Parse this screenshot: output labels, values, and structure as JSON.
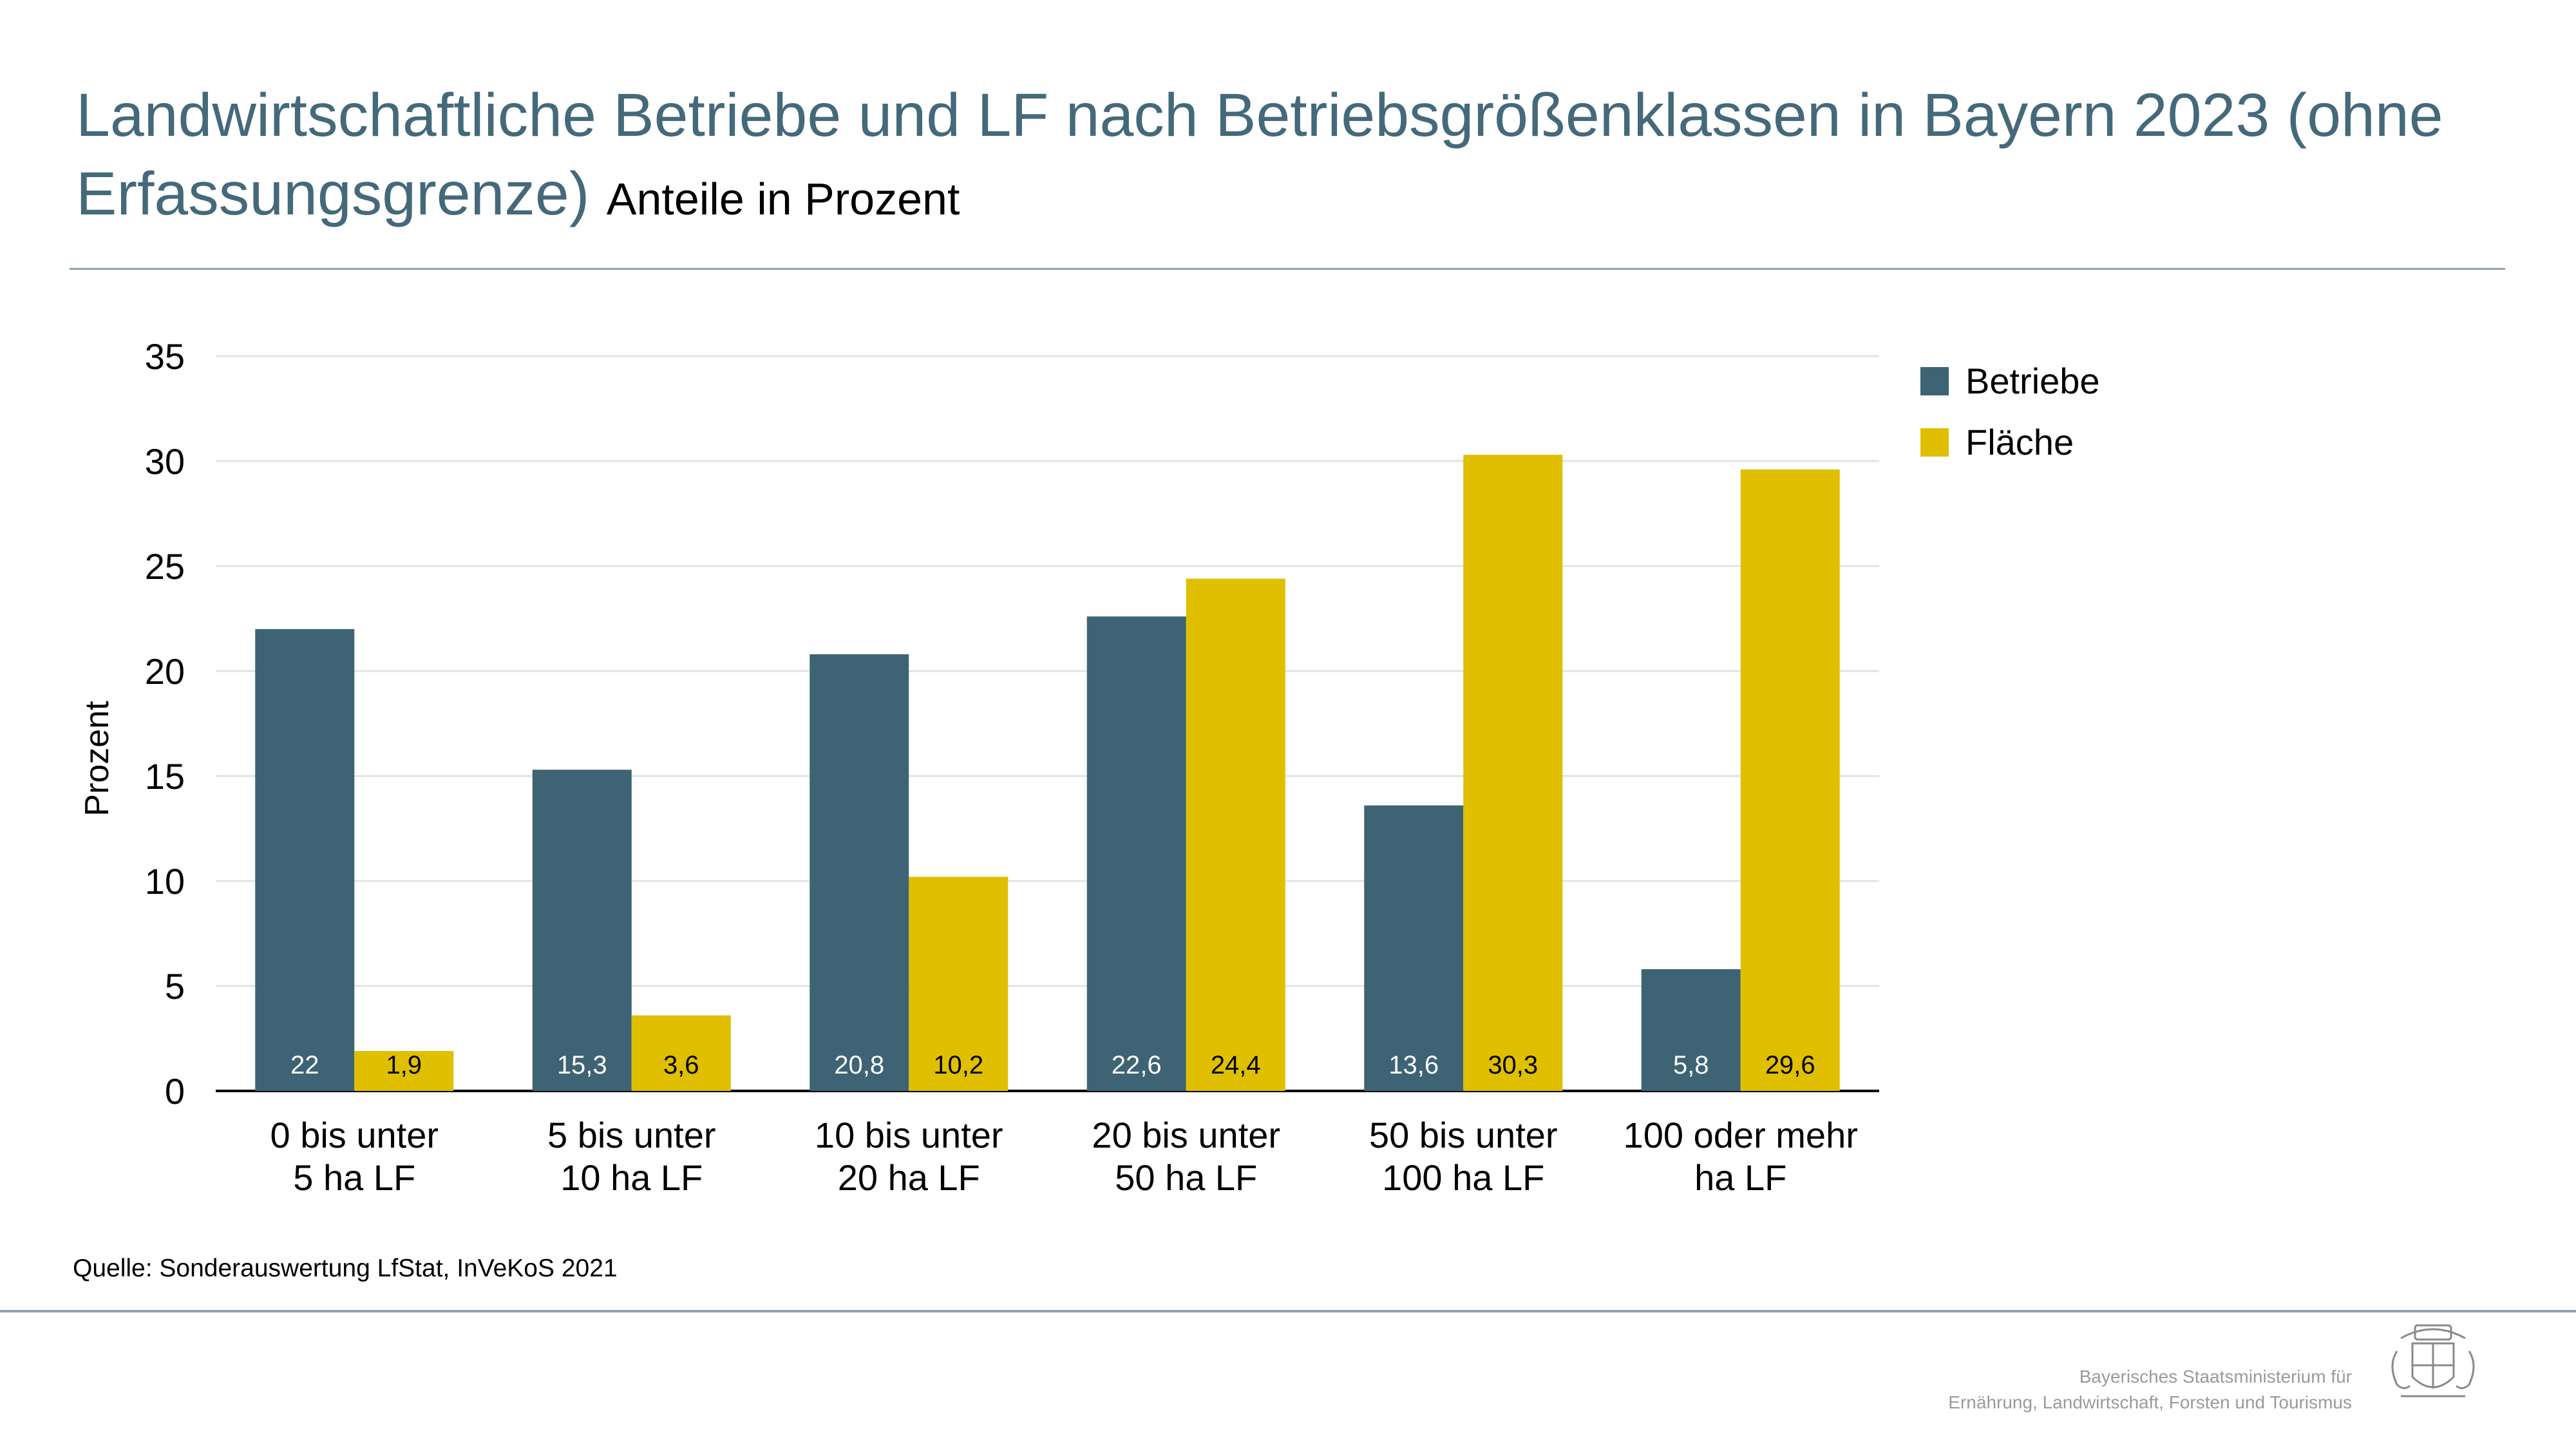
{
  "header": {
    "title": "Landwirtschaftliche Betriebe und LF nach Betriebsgrößenklassen in Bayern 2023 (ohne Erfassungsgrenze)",
    "subtitle": "Anteile in Prozent"
  },
  "footer": {
    "source": "Quelle: Sonderauswertung LfStat, InVeKoS 2021",
    "ministry_line1": "Bayerisches Staatsministerium für",
    "ministry_line2": "Ernährung, Landwirtschaft, Forsten und Tourismus"
  },
  "colors": {
    "betriebe": "#3e6374",
    "flaeche": "#dfbf00",
    "title": "#44697a"
  },
  "chart_data": {
    "type": "bar",
    "categories": [
      [
        "0 bis unter",
        "5 ha LF"
      ],
      [
        "5 bis unter",
        "10 ha LF"
      ],
      [
        "10 bis unter",
        "20 ha LF"
      ],
      [
        "20 bis unter",
        "50 ha LF"
      ],
      [
        "50 bis unter",
        "100 ha LF"
      ],
      [
        "100 oder mehr",
        "ha LF"
      ]
    ],
    "series": [
      {
        "name": "Betriebe",
        "values": [
          22,
          15.3,
          20.8,
          22.6,
          13.6,
          5.8
        ],
        "labels": [
          "22",
          "15,3",
          "20,8",
          "22,6",
          "13,6",
          "5,8"
        ]
      },
      {
        "name": "Fläche",
        "values": [
          1.9,
          3.6,
          10.2,
          24.4,
          30.3,
          29.6
        ],
        "labels": [
          "1,9",
          "3,6",
          "10,2",
          "24,4",
          "30,3",
          "29,6"
        ]
      }
    ],
    "ylabel": "Prozent",
    "ylim": [
      0,
      35
    ],
    "yticks": [
      "0",
      "5",
      "10",
      "15",
      "20",
      "25",
      "30",
      "35"
    ],
    "grid": true,
    "legend": "top-right"
  }
}
